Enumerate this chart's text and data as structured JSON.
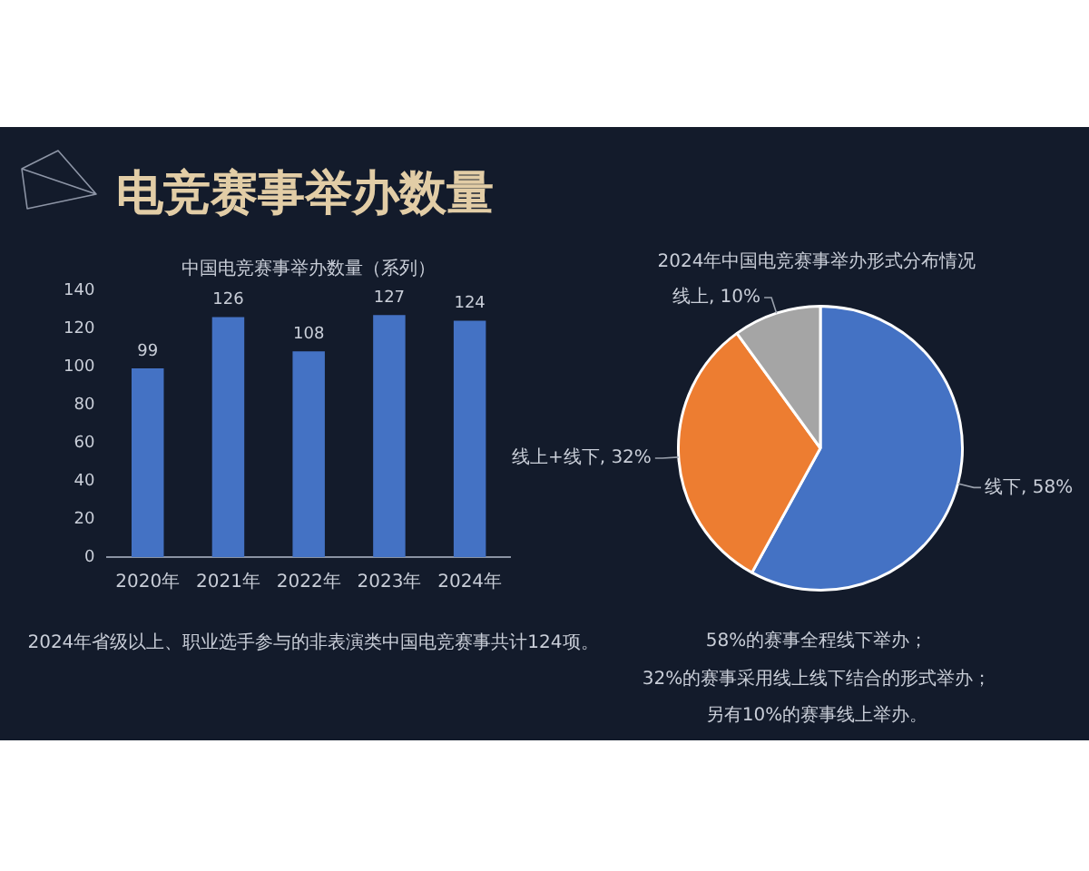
{
  "chart_data": [
    {
      "type": "bar",
      "title": "电竞赛事举办数量",
      "subtitle": "中国电竞赛事举办数量（系列）",
      "categories": [
        "2020年",
        "2021年",
        "2022年",
        "2023年",
        "2024年"
      ],
      "values": [
        99,
        126,
        108,
        127,
        124
      ],
      "color": "#4472c4",
      "ylim": [
        0,
        140
      ],
      "yticks": [
        0,
        20,
        40,
        60,
        80,
        100,
        120,
        140
      ],
      "data_labels": true,
      "annotations": [
        "2024年省级以上、职业选手参与的非表演类中国电竞赛事共计124项。"
      ]
    },
    {
      "type": "pie",
      "title": "2024年中国电竞赛事举办形式分布情况",
      "categories": [
        "线下",
        "线上+线下",
        "线上"
      ],
      "values": [
        58,
        32,
        10
      ],
      "colors": [
        "#4472c4",
        "#ed7d31",
        "#a5a5a5"
      ],
      "value_labels": [
        "58%",
        "32%",
        "10%"
      ],
      "annotations": [
        "58%的赛事全程线下举办；",
        "32%的赛事采用线上线下结合的形式举办；",
        "另有10%的赛事线上举办。"
      ]
    }
  ]
}
